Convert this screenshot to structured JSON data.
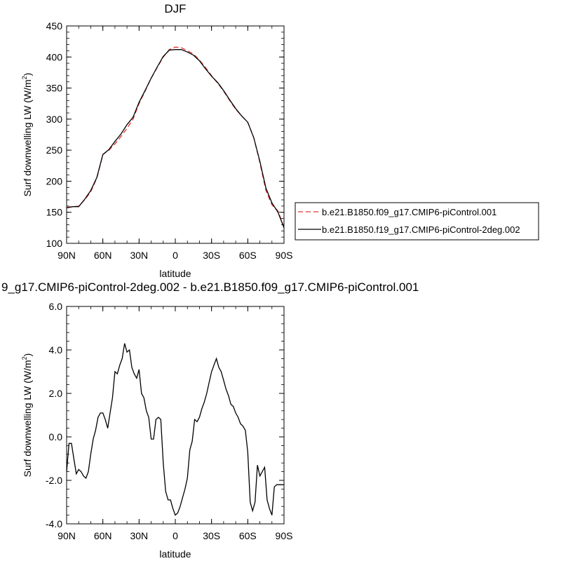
{
  "chart_data": [
    {
      "type": "line",
      "title": "DJF",
      "xlabel": "latitude",
      "ylabel": "Surf downwelling LW (W/m",
      "ylabel_sup": "2",
      "ylabel_close": ")",
      "xlim": [
        90,
        -90
      ],
      "ylim": [
        100,
        450
      ],
      "xticks": [
        90,
        60,
        30,
        0,
        -30,
        -60,
        -90
      ],
      "xtick_labels": [
        "90N",
        "60N",
        "30N",
        "0",
        "30S",
        "60S",
        "90S"
      ],
      "yticks": [
        100,
        150,
        200,
        250,
        300,
        350,
        400,
        450
      ],
      "ytick_labels": [
        "100",
        "150",
        "200",
        "250",
        "300",
        "350",
        "400",
        "450"
      ],
      "legend_position": "right",
      "x": [
        90,
        85,
        80,
        75,
        70,
        65,
        60,
        55,
        50,
        45,
        40,
        35,
        30,
        25,
        20,
        15,
        10,
        5,
        0,
        -5,
        -10,
        -15,
        -20,
        -25,
        -30,
        -35,
        -40,
        -45,
        -50,
        -55,
        -60,
        -65,
        -70,
        -75,
        -80,
        -85,
        -90
      ],
      "series": [
        {
          "name": "b.e21.B1850.f09_g17.CMIP6-piControl.001",
          "color": "#e03030",
          "dash": true,
          "values": [
            158,
            159,
            160,
            170,
            183,
            205,
            243,
            250,
            260,
            272,
            285,
            300,
            325,
            345,
            366,
            383,
            400,
            412,
            416,
            415,
            410,
            405,
            395,
            383,
            370,
            358,
            345,
            330,
            316,
            305,
            295,
            270,
            230,
            185,
            162,
            152,
            126
          ]
        },
        {
          "name": "b.e21.B1850.f19_g17.CMIP6-piControl-2deg.002",
          "color": "#000000",
          "dash": false,
          "values": [
            157,
            159,
            159,
            171,
            185,
            206,
            243,
            251,
            264,
            276,
            291,
            303,
            327,
            346,
            366,
            384,
            401,
            411,
            412,
            412,
            408,
            403,
            394,
            381,
            369,
            359,
            346,
            331,
            317,
            305,
            295,
            270,
            232,
            189,
            165,
            150,
            125
          ]
        }
      ]
    },
    {
      "type": "line",
      "title": "9_g17.CMIP6-piControl-2deg.002 - b.e21.B1850.f09_g17.CMIP6-piControl.001",
      "xlabel": "latitude",
      "ylabel": "Surf downwelling LW (W/m",
      "ylabel_sup": "2",
      "ylabel_close": ")",
      "xlim": [
        90,
        -90
      ],
      "ylim": [
        -4,
        6
      ],
      "xticks": [
        90,
        60,
        30,
        0,
        -30,
        -60,
        -90
      ],
      "xtick_labels": [
        "90N",
        "60N",
        "30N",
        "0",
        "30S",
        "60S",
        "90S"
      ],
      "yticks": [
        -4,
        -2,
        0,
        2,
        4,
        6
      ],
      "ytick_labels": [
        "-4.0",
        "-2.0",
        "0.0",
        "2.0",
        "4.0",
        "6.0"
      ],
      "x": [
        90,
        88,
        86,
        84,
        82,
        80,
        78,
        76,
        74,
        72,
        70,
        68,
        66,
        64,
        62,
        60,
        58,
        56,
        54,
        52,
        50,
        48,
        46,
        44,
        42,
        40,
        38,
        36,
        34,
        32,
        30,
        28,
        26,
        24,
        22,
        20,
        18,
        16,
        14,
        12,
        10,
        8,
        6,
        4,
        2,
        0,
        -2,
        -4,
        -6,
        -8,
        -10,
        -12,
        -14,
        -16,
        -18,
        -20,
        -22,
        -24,
        -26,
        -28,
        -30,
        -32,
        -34,
        -36,
        -38,
        -40,
        -42,
        -44,
        -46,
        -48,
        -50,
        -52,
        -54,
        -56,
        -58,
        -60,
        -62,
        -64,
        -66,
        -68,
        -70,
        -72,
        -74,
        -76,
        -78,
        -80,
        -82,
        -84,
        -86,
        -88,
        -90
      ],
      "series": [
        {
          "name": "",
          "color": "#000000",
          "dash": false,
          "values": [
            -1.6,
            -0.3,
            -0.3,
            -1.0,
            -1.7,
            -1.5,
            -1.6,
            -1.8,
            -1.9,
            -1.6,
            -0.8,
            -0.1,
            0.3,
            0.9,
            1.1,
            1.1,
            0.8,
            0.4,
            1.1,
            1.8,
            3.0,
            2.9,
            3.3,
            3.6,
            4.3,
            3.9,
            4.0,
            3.2,
            2.9,
            2.7,
            3.1,
            2.0,
            1.8,
            1.2,
            0.9,
            -0.1,
            -0.1,
            0.8,
            0.9,
            0.8,
            -1.2,
            -2.5,
            -2.9,
            -2.9,
            -3.3,
            -3.6,
            -3.5,
            -3.2,
            -2.8,
            -2.4,
            -1.9,
            -0.6,
            -0.2,
            0.8,
            0.7,
            0.9,
            1.3,
            1.6,
            2.0,
            2.5,
            3.0,
            3.3,
            3.6,
            3.2,
            3.0,
            2.6,
            2.2,
            1.9,
            1.5,
            1.4,
            1.1,
            0.9,
            0.6,
            0.5,
            0.3,
            -0.7,
            -3.0,
            -3.4,
            -3.0,
            -1.3,
            -1.8,
            -1.6,
            -1.4,
            -2.9,
            -3.3,
            -3.6,
            -2.3,
            -2.2,
            -2.2,
            -2.2,
            -2.2
          ]
        }
      ]
    }
  ]
}
